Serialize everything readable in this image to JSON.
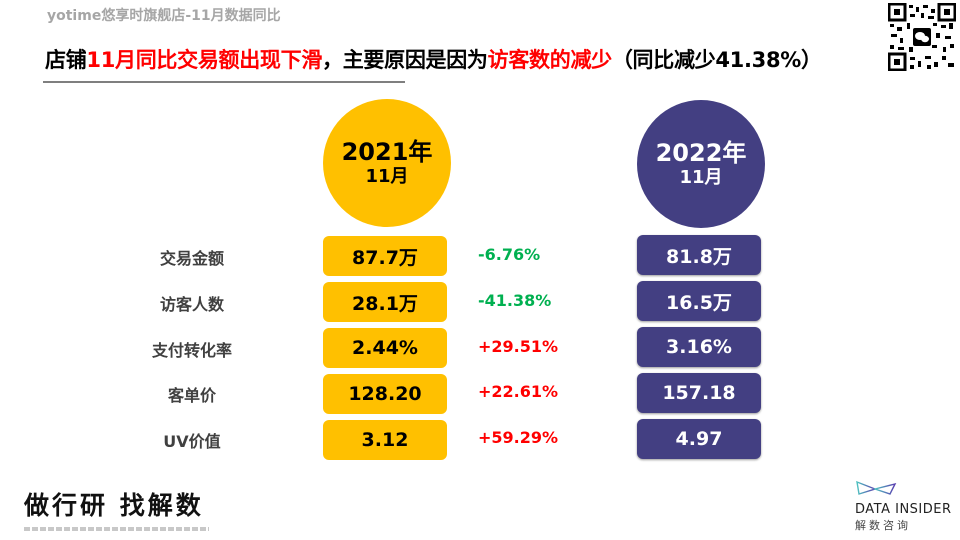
{
  "header": {
    "subtitle": "yotime悠享时旗舰店-11月数据同比",
    "headline_parts": [
      {
        "text": "店铺",
        "highlight": false
      },
      {
        "text": "11月同比交易额出现下滑",
        "highlight": true
      },
      {
        "text": "，主要原因是因为",
        "highlight": false
      },
      {
        "text": "访客数的减少",
        "highlight": true
      },
      {
        "text": "（同比减少41.38%）",
        "highlight": false
      }
    ]
  },
  "periods": [
    {
      "year": "2021年",
      "month": "11月",
      "color": "#ffc000"
    },
    {
      "year": "2022年",
      "month": "11月",
      "color": "#433f82"
    }
  ],
  "metrics": [
    {
      "label": "交易金额",
      "v2021": "87.7万",
      "change": "-6.76%",
      "direction": "down",
      "v2022": "81.8万"
    },
    {
      "label": "访客人数",
      "v2021": "28.1万",
      "change": "-41.38%",
      "direction": "down",
      "v2022": "16.5万"
    },
    {
      "label": "支付转化率",
      "v2021": "2.44%",
      "change": "+29.51%",
      "direction": "up",
      "v2022": "3.16%"
    },
    {
      "label": "客单价",
      "v2021": "128.20",
      "change": "+22.61%",
      "direction": "up",
      "v2022": "157.18"
    },
    {
      "label": "UV价值",
      "v2021": "3.12",
      "change": "+59.29%",
      "direction": "up",
      "v2022": "4.97"
    }
  ],
  "colors": {
    "down": "#00b050",
    "up": "#ff0000",
    "accent_red": "#ff0000"
  },
  "footer": {
    "left_brand": "做行研 找解数",
    "right_brand_en": "DATA INSIDER",
    "right_brand_cn": "解数咨询"
  },
  "icons": {
    "qr": "qr-code-icon",
    "wechat": "wechat-icon",
    "logo": "data-insider-logo-icon"
  }
}
